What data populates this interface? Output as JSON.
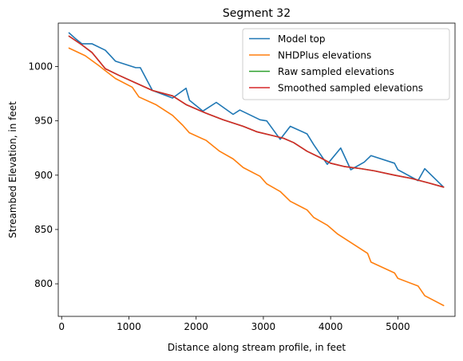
{
  "chart_data": {
    "type": "line",
    "title": "Segment 32",
    "xlabel": "Distance along stream profile, in feet",
    "ylabel": "Streambed Elevation, in feet",
    "xlim": [
      -50,
      5850
    ],
    "ylim": [
      770,
      1040
    ],
    "xticks": [
      0,
      1000,
      2000,
      3000,
      4000,
      5000
    ],
    "yticks": [
      800,
      850,
      900,
      950,
      1000
    ],
    "grid": false,
    "legend_position": "top-right",
    "series": [
      {
        "name": "Model top",
        "color": "#1f77b4",
        "x": [
          110,
          200,
          300,
          450,
          650,
          800,
          1100,
          1170,
          1350,
          1650,
          1850,
          1900,
          2100,
          2300,
          2550,
          2650,
          2950,
          3050,
          3250,
          3400,
          3650,
          3750,
          3950,
          4150,
          4300,
          4500,
          4600,
          4950,
          5000,
          5300,
          5400,
          5680
        ],
        "y": [
          1031,
          1026,
          1021,
          1021,
          1015,
          1005,
          999,
          999,
          978,
          971,
          980,
          969,
          959,
          967,
          956,
          960,
          951,
          950,
          933,
          945,
          938,
          928,
          910,
          925,
          905,
          912,
          918,
          911,
          905,
          895,
          906,
          889
        ]
      },
      {
        "name": "NHDPlus elevations",
        "color": "#ff7f0e",
        "x": [
          110,
          350,
          550,
          800,
          1050,
          1150,
          1400,
          1650,
          1800,
          1900,
          2150,
          2350,
          2550,
          2700,
          2950,
          3050,
          3250,
          3400,
          3650,
          3750,
          3950,
          4100,
          4300,
          4550,
          4600,
          4950,
          5000,
          5300,
          5400,
          5680
        ],
        "y": [
          1017,
          1010,
          1001,
          989,
          981,
          972,
          965,
          955,
          946,
          939,
          932,
          922,
          915,
          907,
          899,
          892,
          885,
          876,
          868,
          861,
          854,
          846,
          838,
          828,
          820,
          810,
          805,
          798,
          789,
          780
        ]
      },
      {
        "name": "Raw sampled elevations",
        "color": "#2ca02c",
        "x": [
          110,
          300,
          450,
          650,
          850,
          1100,
          1350,
          1650,
          1850,
          2150,
          2400,
          2550,
          2700,
          2900,
          3100,
          3300,
          3450,
          3650,
          3850,
          4000,
          4200,
          4450,
          4650,
          4950,
          5200,
          5450,
          5680
        ],
        "y": [
          1028,
          1020,
          1013,
          998,
          992,
          985,
          978,
          973,
          965,
          957,
          951,
          948,
          945,
          940,
          937,
          934,
          930,
          922,
          916,
          911,
          908,
          906,
          904,
          900,
          897,
          893,
          889
        ]
      },
      {
        "name": "Smoothed sampled elevations",
        "color": "#d62728",
        "x": [
          110,
          300,
          450,
          650,
          850,
          1100,
          1350,
          1650,
          1850,
          2150,
          2400,
          2550,
          2700,
          2900,
          3100,
          3300,
          3450,
          3650,
          3850,
          4000,
          4200,
          4450,
          4650,
          4950,
          5200,
          5450,
          5680
        ],
        "y": [
          1028,
          1020,
          1013,
          998,
          992,
          985,
          978,
          973,
          965,
          957,
          951,
          948,
          945,
          940,
          937,
          934,
          930,
          922,
          916,
          911,
          908,
          906,
          904,
          900,
          897,
          893,
          889
        ]
      }
    ]
  }
}
